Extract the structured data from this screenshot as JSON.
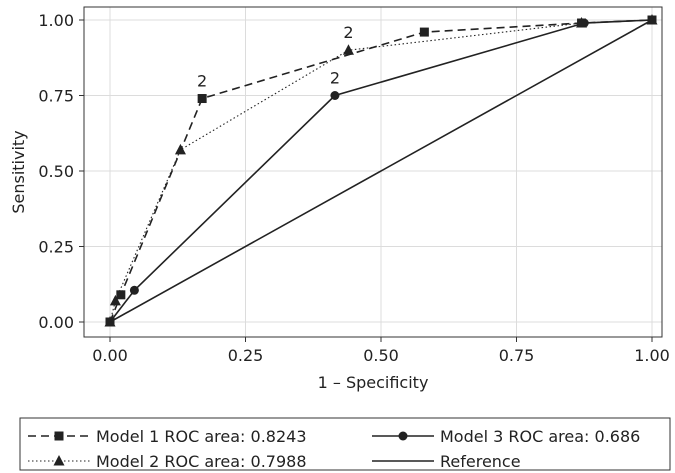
{
  "chart_data": {
    "type": "line",
    "title": "",
    "xlabel": "1 – Specificity",
    "ylabel": "Sensitivity",
    "xlim": [
      0,
      1
    ],
    "ylim": [
      0,
      1
    ],
    "x_ticks": [
      "0.00",
      "0.25",
      "0.50",
      "0.75",
      "1.00"
    ],
    "y_ticks": [
      "0.00",
      "0.25",
      "0.50",
      "0.75",
      "1.00"
    ],
    "grid": true,
    "legend_position": "bottom",
    "series": [
      {
        "name": "Model 1 ROC area: 0.8243",
        "line_style": "dashed",
        "marker": "square",
        "color": "#222222",
        "points": [
          [
            0,
            0
          ],
          [
            0.02,
            0.09
          ],
          [
            0.17,
            0.74
          ],
          [
            0.58,
            0.96
          ],
          [
            0.87,
            0.99
          ],
          [
            1,
            1
          ]
        ]
      },
      {
        "name": "Model 2 ROC area: 0.7988",
        "line_style": "dotted",
        "marker": "triangle",
        "color": "#222222",
        "points": [
          [
            0,
            0
          ],
          [
            0.01,
            0.07
          ],
          [
            0.13,
            0.57
          ],
          [
            0.44,
            0.9
          ],
          [
            0.87,
            0.99
          ],
          [
            1,
            1
          ]
        ]
      },
      {
        "name": "Model 3 ROC area: 0.686",
        "line_style": "solid",
        "marker": "circle",
        "color": "#222222",
        "points": [
          [
            0,
            0
          ],
          [
            0.045,
            0.105
          ],
          [
            0.415,
            0.75
          ],
          [
            0.875,
            0.99
          ],
          [
            1,
            1
          ]
        ]
      },
      {
        "name": "Reference",
        "line_style": "solid",
        "marker": "none",
        "color": "#222222",
        "points": [
          [
            0,
            0
          ],
          [
            1,
            1
          ]
        ]
      }
    ],
    "annotations": [
      {
        "text": "2",
        "x": 0.17,
        "y": 0.74
      },
      {
        "text": "2",
        "x": 0.44,
        "y": 0.9
      },
      {
        "text": "2",
        "x": 0.415,
        "y": 0.75
      }
    ]
  }
}
